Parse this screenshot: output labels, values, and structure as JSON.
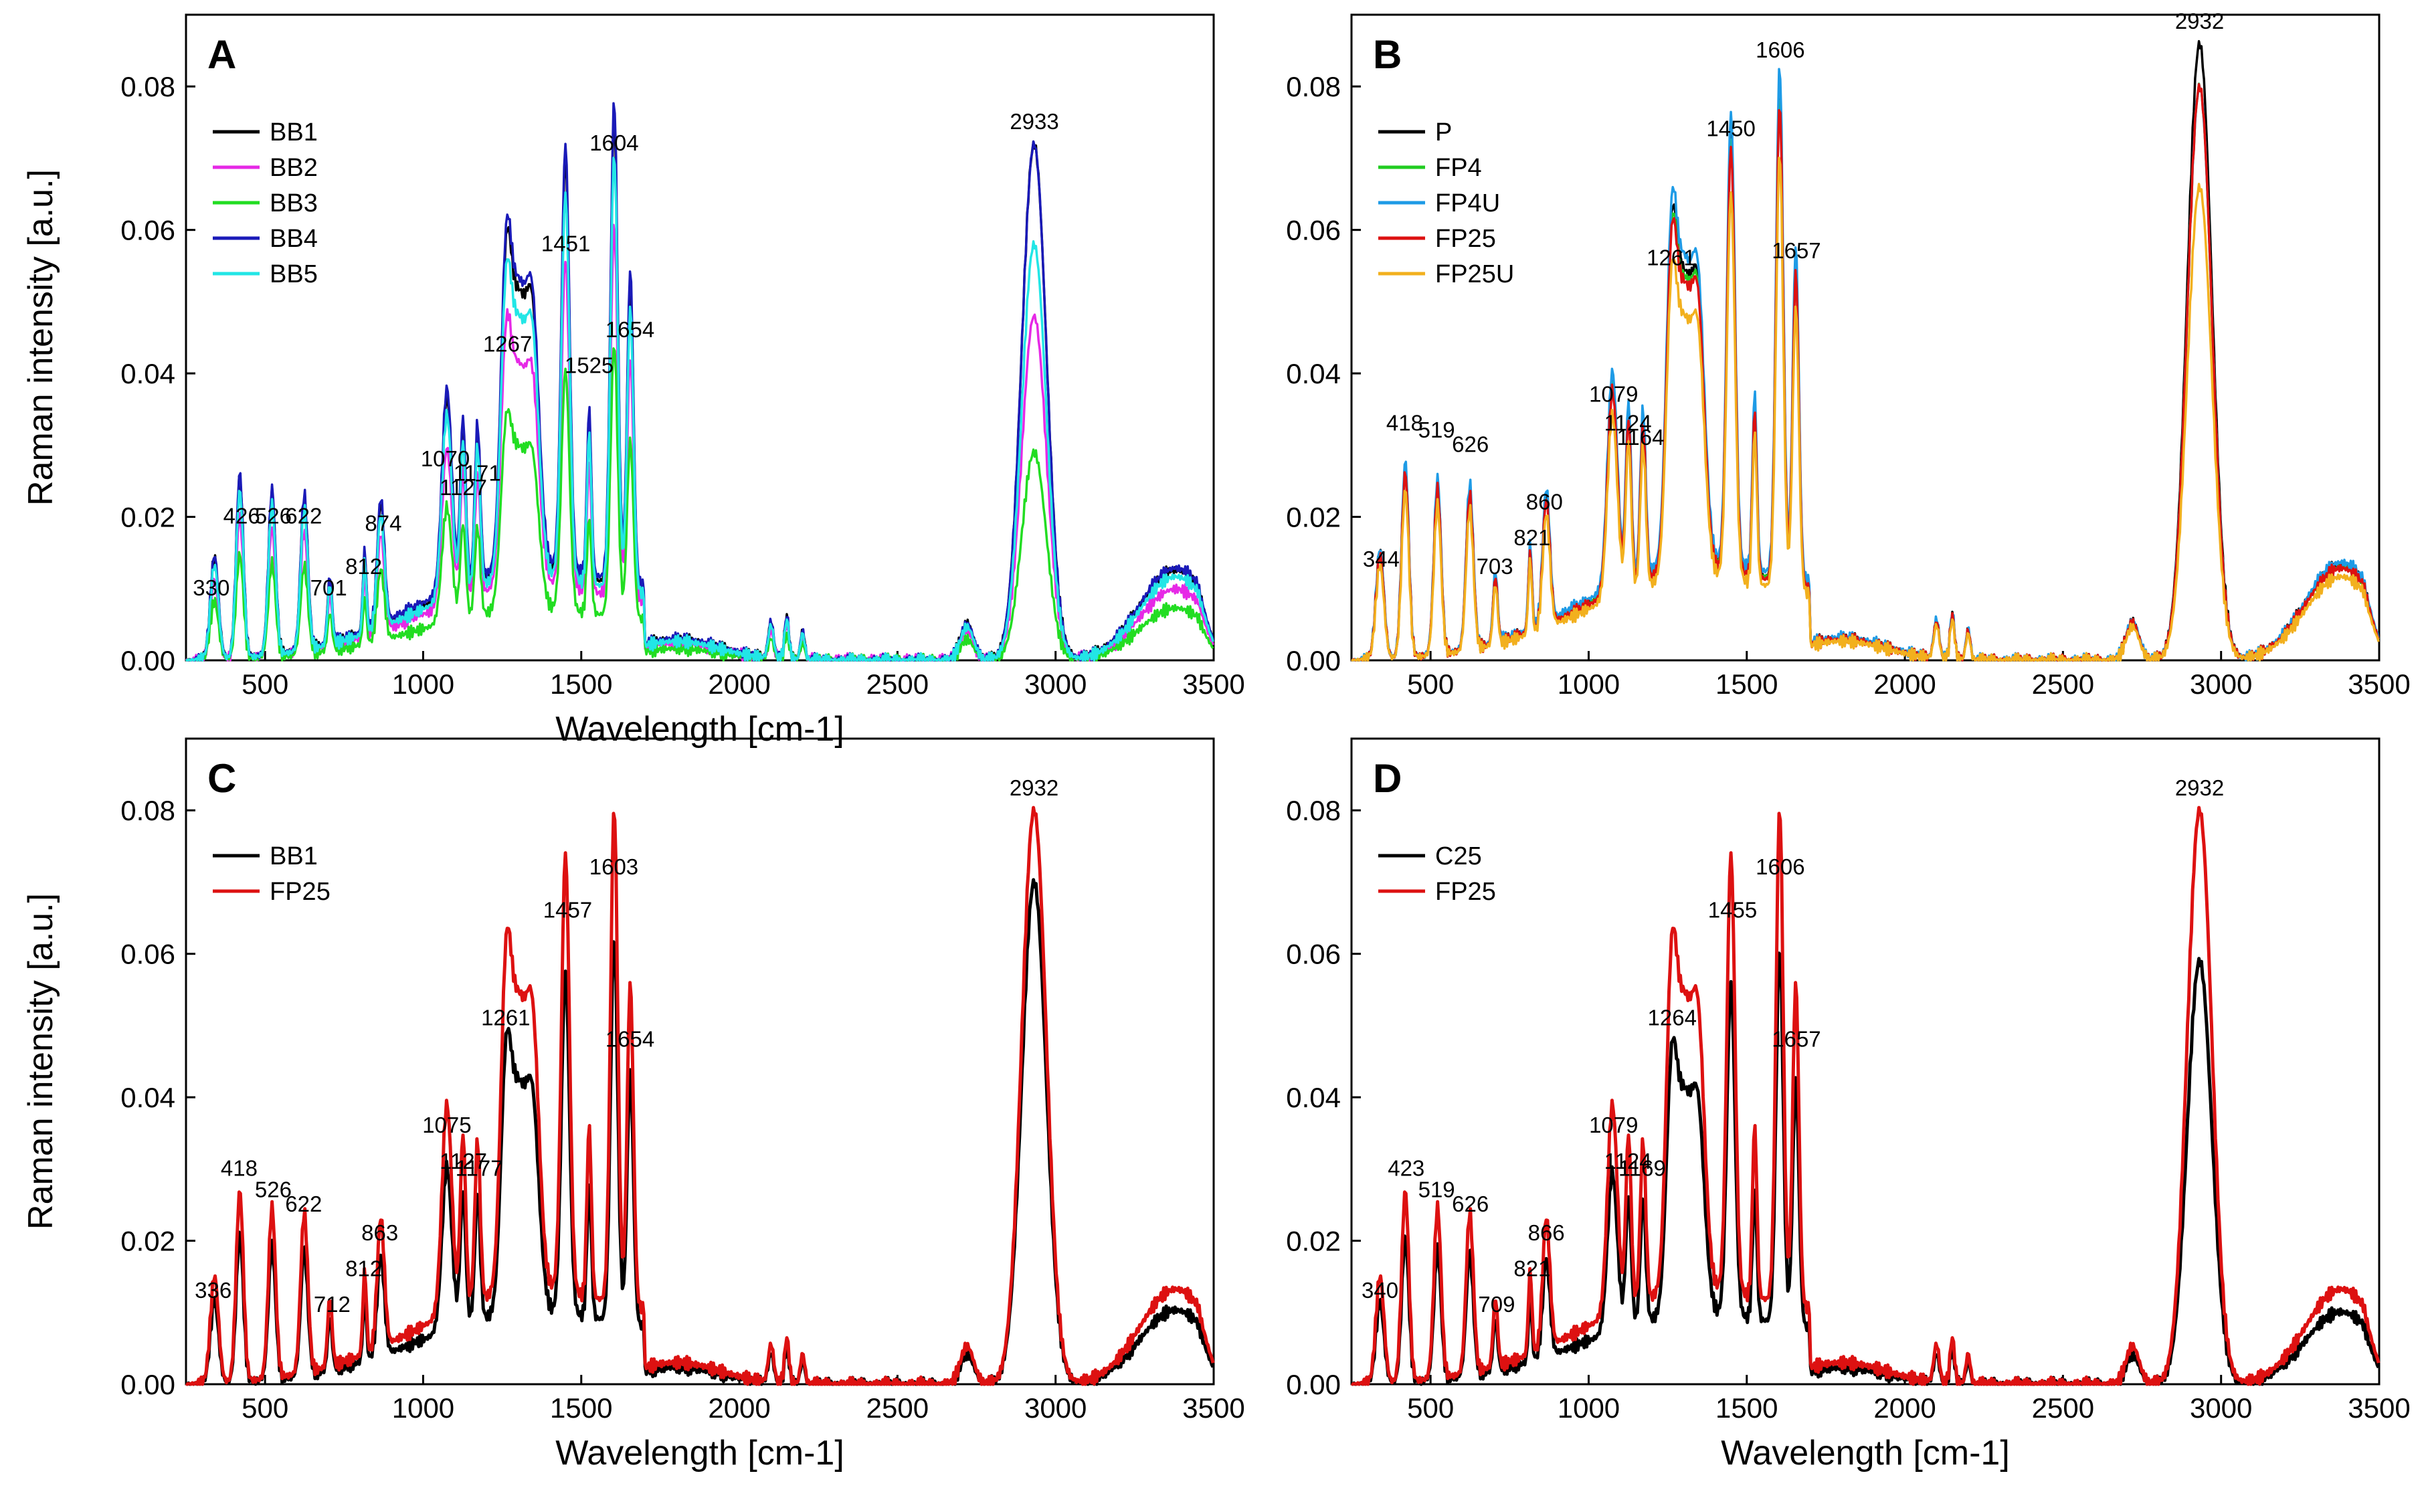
{
  "chart_data": [
    {
      "type": "line",
      "panel": "A",
      "xlabel": "Wavelength [cm-1]",
      "ylabel": "Raman intensity [a.u.]",
      "xlim": [
        250,
        3500
      ],
      "ylim": [
        0,
        0.09
      ],
      "xticks": [
        500,
        1000,
        1500,
        2000,
        2500,
        3000,
        3500
      ],
      "yticks": [
        0.0,
        0.02,
        0.04,
        0.06,
        0.08
      ],
      "legend_position": "top-left",
      "series": [
        {
          "name": "BB1",
          "color": "#000000",
          "scale": 0.95,
          "x2933": 0.072,
          "xoff": 0.06
        },
        {
          "name": "BB2",
          "color": "#e629e6",
          "scale": 0.75,
          "x2933": 0.048,
          "xoff": 0.1
        },
        {
          "name": "BB3",
          "color": "#22dd22",
          "scale": 0.55,
          "x2933": 0.029,
          "xoff": 0.06
        },
        {
          "name": "BB4",
          "color": "#1a1ab8",
          "scale": 0.97,
          "x2933": 0.072,
          "xoff": 0.08
        },
        {
          "name": "BB5",
          "color": "#22e6e6",
          "scale": 0.88,
          "x2933": 0.058,
          "xoff": 0.07
        }
      ],
      "peaks": [
        {
          "x": 330,
          "y": 0.007,
          "label": "330"
        },
        {
          "x": 426,
          "y": 0.017,
          "label": "426"
        },
        {
          "x": 526,
          "y": 0.017,
          "label": "526"
        },
        {
          "x": 622,
          "y": 0.017,
          "label": "622"
        },
        {
          "x": 701,
          "y": 0.007,
          "label": "701"
        },
        {
          "x": 812,
          "y": 0.01,
          "label": "812"
        },
        {
          "x": 874,
          "y": 0.016,
          "label": "874"
        },
        {
          "x": 1070,
          "y": 0.025,
          "label": "1070"
        },
        {
          "x": 1127,
          "y": 0.021,
          "label": "1127"
        },
        {
          "x": 1171,
          "y": 0.023,
          "label": "1171"
        },
        {
          "x": 1267,
          "y": 0.041,
          "label": "1267"
        },
        {
          "x": 1451,
          "y": 0.055,
          "label": "1451"
        },
        {
          "x": 1525,
          "y": 0.038,
          "label": "1525"
        },
        {
          "x": 1604,
          "y": 0.069,
          "label": "1604"
        },
        {
          "x": 1654,
          "y": 0.043,
          "label": "1654"
        },
        {
          "x": 2933,
          "y": 0.072,
          "label": "2933"
        }
      ]
    },
    {
      "type": "line",
      "panel": "B",
      "xlabel": "",
      "ylabel": "",
      "xlim": [
        250,
        3500
      ],
      "ylim": [
        0,
        0.09
      ],
      "xticks": [
        500,
        1000,
        1500,
        2000,
        2500,
        3000,
        3500
      ],
      "yticks": [
        0.0,
        0.02,
        0.04,
        0.06,
        0.08
      ],
      "legend_position": "top-left",
      "series": [
        {
          "name": "P",
          "color": "#000000",
          "scale": 1.0,
          "x2933": 0.086,
          "xoff": 0.06
        },
        {
          "name": "FP4",
          "color": "#22cc22",
          "scale": 0.98,
          "x2933": 0.08,
          "xoff": 0.07
        },
        {
          "name": "FP4U",
          "color": "#1e9be6",
          "scale": 1.03,
          "x2933": 0.08,
          "xoff": 0.08
        },
        {
          "name": "FP25",
          "color": "#dd1111",
          "scale": 0.97,
          "x2933": 0.08,
          "xoff": 0.06
        },
        {
          "name": "FP25U",
          "color": "#f2b01e",
          "scale": 0.88,
          "x2933": 0.066,
          "xoff": 0.07
        }
      ],
      "peaks": [
        {
          "x": 344,
          "y": 0.011,
          "label": "344"
        },
        {
          "x": 418,
          "y": 0.03,
          "label": "418"
        },
        {
          "x": 519,
          "y": 0.029,
          "label": "519"
        },
        {
          "x": 626,
          "y": 0.027,
          "label": "626"
        },
        {
          "x": 703,
          "y": 0.01,
          "label": "703"
        },
        {
          "x": 821,
          "y": 0.014,
          "label": "821"
        },
        {
          "x": 860,
          "y": 0.019,
          "label": "860"
        },
        {
          "x": 1079,
          "y": 0.034,
          "label": "1079"
        },
        {
          "x": 1124,
          "y": 0.03,
          "label": "1124"
        },
        {
          "x": 1164,
          "y": 0.028,
          "label": "1164"
        },
        {
          "x": 1261,
          "y": 0.053,
          "label": "1261"
        },
        {
          "x": 1450,
          "y": 0.071,
          "label": "1450"
        },
        {
          "x": 1606,
          "y": 0.082,
          "label": "1606"
        },
        {
          "x": 1657,
          "y": 0.054,
          "label": "1657"
        },
        {
          "x": 2932,
          "y": 0.086,
          "label": "2932"
        }
      ]
    },
    {
      "type": "line",
      "panel": "C",
      "xlabel": "Wavelength [cm-1]",
      "ylabel": "Raman intensity [a.u.]",
      "xlim": [
        250,
        3500
      ],
      "ylim": [
        0,
        0.09
      ],
      "xticks": [
        500,
        1000,
        1500,
        2000,
        2500,
        3000,
        3500
      ],
      "yticks": [
        0.0,
        0.02,
        0.04,
        0.06,
        0.08
      ],
      "legend_position": "top-left",
      "series": [
        {
          "name": "BB1",
          "color": "#000000",
          "scale": 0.78,
          "x2933": 0.07,
          "xoff": 0.06
        },
        {
          "name": "FP25",
          "color": "#dd1111",
          "scale": 1.0,
          "x2933": 0.08,
          "xoff": 0.07
        }
      ],
      "peaks": [
        {
          "x": 336,
          "y": 0.01,
          "label": "336"
        },
        {
          "x": 418,
          "y": 0.027,
          "label": "418"
        },
        {
          "x": 526,
          "y": 0.024,
          "label": "526"
        },
        {
          "x": 622,
          "y": 0.022,
          "label": "622"
        },
        {
          "x": 712,
          "y": 0.008,
          "label": "712"
        },
        {
          "x": 812,
          "y": 0.013,
          "label": "812"
        },
        {
          "x": 863,
          "y": 0.018,
          "label": "863"
        },
        {
          "x": 1075,
          "y": 0.033,
          "label": "1075"
        },
        {
          "x": 1127,
          "y": 0.028,
          "label": "1127"
        },
        {
          "x": 1177,
          "y": 0.027,
          "label": "1177"
        },
        {
          "x": 1261,
          "y": 0.048,
          "label": "1261"
        },
        {
          "x": 1457,
          "y": 0.063,
          "label": "1457"
        },
        {
          "x": 1603,
          "y": 0.069,
          "label": "1603"
        },
        {
          "x": 1654,
          "y": 0.045,
          "label": "1654"
        },
        {
          "x": 2932,
          "y": 0.08,
          "label": "2932"
        }
      ]
    },
    {
      "type": "line",
      "panel": "D",
      "xlabel": "Wavelength [cm-1]",
      "ylabel": "",
      "xlim": [
        250,
        3500
      ],
      "ylim": [
        0,
        0.09
      ],
      "xticks": [
        500,
        1000,
        1500,
        2000,
        2500,
        3000,
        3500
      ],
      "yticks": [
        0.0,
        0.02,
        0.04,
        0.06,
        0.08
      ],
      "legend_position": "top-left",
      "series": [
        {
          "name": "C25",
          "color": "#000000",
          "scale": 0.76,
          "x2933": 0.059,
          "xoff": 0.06
        },
        {
          "name": "FP25",
          "color": "#dd1111",
          "scale": 1.0,
          "x2933": 0.08,
          "xoff": 0.07
        }
      ],
      "peaks": [
        {
          "x": 340,
          "y": 0.01,
          "label": "340"
        },
        {
          "x": 423,
          "y": 0.027,
          "label": "423"
        },
        {
          "x": 519,
          "y": 0.024,
          "label": "519"
        },
        {
          "x": 626,
          "y": 0.022,
          "label": "626"
        },
        {
          "x": 709,
          "y": 0.008,
          "label": "709"
        },
        {
          "x": 821,
          "y": 0.013,
          "label": "821"
        },
        {
          "x": 866,
          "y": 0.018,
          "label": "866"
        },
        {
          "x": 1079,
          "y": 0.033,
          "label": "1079"
        },
        {
          "x": 1124,
          "y": 0.028,
          "label": "1124"
        },
        {
          "x": 1169,
          "y": 0.027,
          "label": "1169"
        },
        {
          "x": 1264,
          "y": 0.048,
          "label": "1264"
        },
        {
          "x": 1455,
          "y": 0.063,
          "label": "1455"
        },
        {
          "x": 1606,
          "y": 0.069,
          "label": "1606"
        },
        {
          "x": 1657,
          "y": 0.045,
          "label": "1657"
        },
        {
          "x": 2932,
          "y": 0.08,
          "label": "2932"
        }
      ]
    }
  ]
}
